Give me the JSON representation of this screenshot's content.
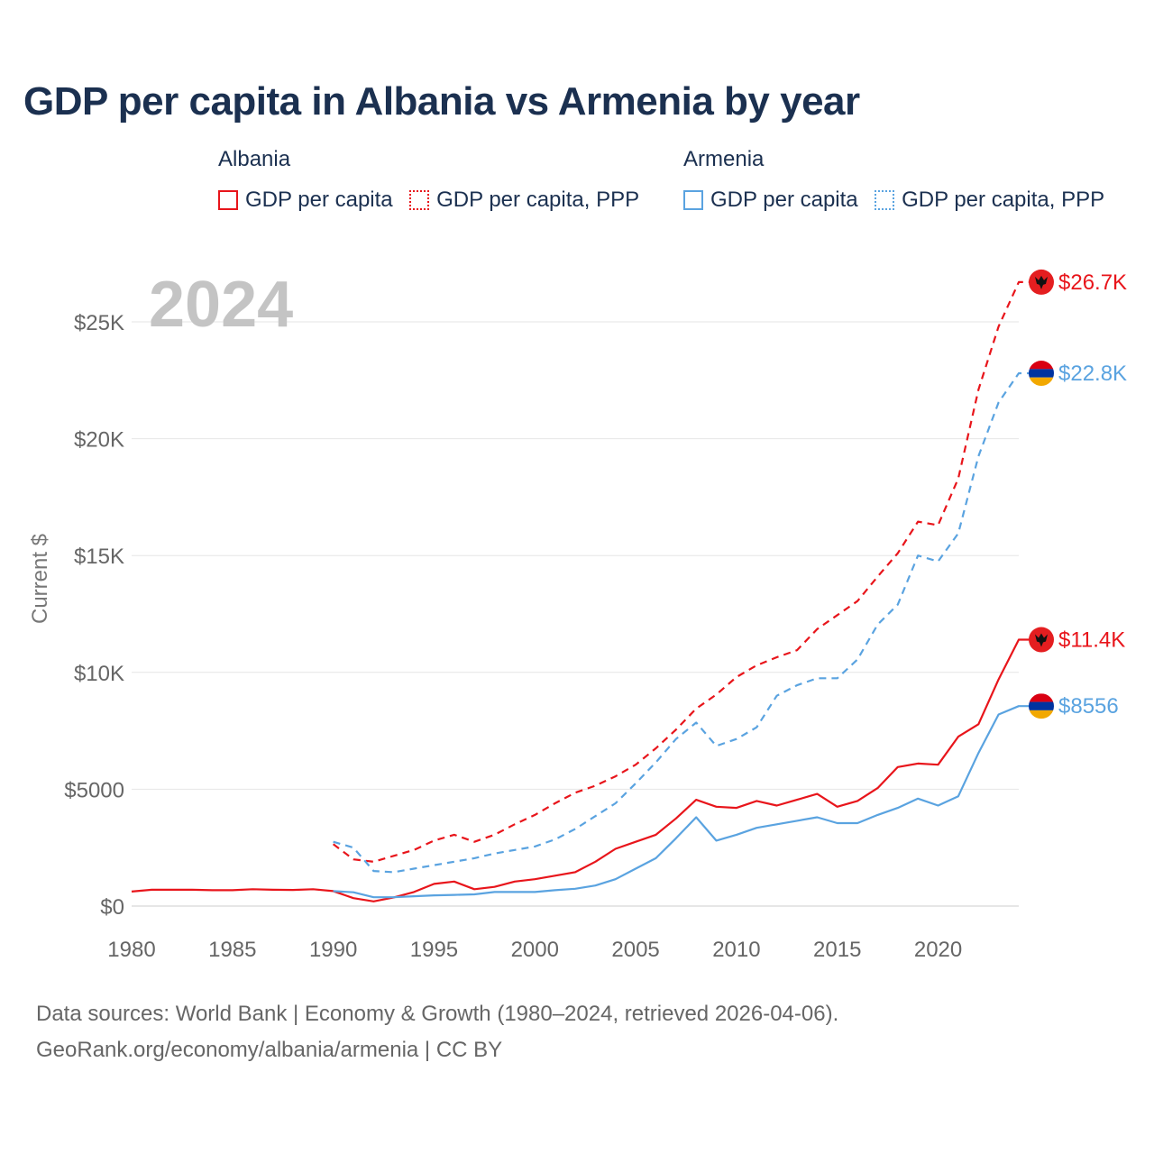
{
  "title": "GDP per capita in Albania vs Armenia by year",
  "legend": {
    "groups": [
      {
        "country": "Albania",
        "items": [
          {
            "label": "GDP per capita",
            "color": "#e8151b",
            "style": "solid"
          },
          {
            "label": "GDP per capita, PPP",
            "color": "#e8151b",
            "style": "dotted"
          }
        ]
      },
      {
        "country": "Armenia",
        "items": [
          {
            "label": "GDP per capita",
            "color": "#5aa3e0",
            "style": "solid"
          },
          {
            "label": "GDP per capita, PPP",
            "color": "#5aa3e0",
            "style": "dotted"
          }
        ]
      }
    ]
  },
  "chart_data": {
    "type": "line",
    "title": "GDP per capita in Albania vs Armenia by year",
    "year_label": "2024",
    "ylabel": "Current $",
    "xlabel": "",
    "xlim": [
      1980,
      2025
    ],
    "ylim": [
      0,
      28000
    ],
    "x_ticks": [
      1980,
      1985,
      1990,
      1995,
      2000,
      2005,
      2010,
      2015,
      2020
    ],
    "y_ticks": [
      {
        "value": 0,
        "label": "$0"
      },
      {
        "value": 5000,
        "label": "$5000"
      },
      {
        "value": 10000,
        "label": "$10K"
      },
      {
        "value": 15000,
        "label": "$15K"
      },
      {
        "value": 20000,
        "label": "$20K"
      },
      {
        "value": 25000,
        "label": "$25K"
      }
    ],
    "series": [
      {
        "name": "Albania GDP per capita",
        "country": "Albania",
        "color": "#e8151b",
        "dash": "solid",
        "end_label": "$11.4K",
        "flag": "albania",
        "x": [
          1980,
          1981,
          1982,
          1983,
          1984,
          1985,
          1986,
          1987,
          1988,
          1989,
          1990,
          1991,
          1992,
          1993,
          1994,
          1995,
          1996,
          1997,
          1998,
          1999,
          2000,
          2001,
          2002,
          2003,
          2004,
          2005,
          2006,
          2007,
          2008,
          2009,
          2010,
          2011,
          2012,
          2013,
          2014,
          2015,
          2016,
          2017,
          2018,
          2019,
          2020,
          2021,
          2022,
          2023,
          2024
        ],
        "values": [
          620,
          700,
          700,
          700,
          680,
          680,
          720,
          700,
          690,
          720,
          640,
          340,
          200,
          370,
          600,
          950,
          1050,
          720,
          820,
          1050,
          1150,
          1300,
          1450,
          1900,
          2450,
          2750,
          3050,
          3750,
          4550,
          4250,
          4200,
          4500,
          4300,
          4550,
          4800,
          4250,
          4500,
          5050,
          5950,
          6100,
          6050,
          7250,
          7780,
          9700,
          11400
        ]
      },
      {
        "name": "Albania GDP per capita, PPP",
        "country": "Albania",
        "color": "#e8151b",
        "dash": "dashed",
        "end_label": "$26.7K",
        "flag": "albania",
        "x": [
          1990,
          1991,
          1992,
          1993,
          1994,
          1995,
          1996,
          1997,
          1998,
          1999,
          2000,
          2001,
          2002,
          2003,
          2004,
          2005,
          2006,
          2007,
          2008,
          2009,
          2010,
          2011,
          2012,
          2013,
          2014,
          2015,
          2016,
          2017,
          2018,
          2019,
          2020,
          2021,
          2022,
          2023,
          2024
        ],
        "values": [
          2650,
          2000,
          1900,
          2150,
          2400,
          2800,
          3050,
          2750,
          3050,
          3500,
          3900,
          4400,
          4850,
          5150,
          5550,
          6050,
          6750,
          7550,
          8450,
          9050,
          9800,
          10300,
          10650,
          10950,
          11850,
          12450,
          13050,
          14100,
          15100,
          16450,
          16300,
          18300,
          22100,
          24800,
          26700
        ]
      },
      {
        "name": "Armenia GDP per capita",
        "country": "Armenia",
        "color": "#5aa3e0",
        "dash": "solid",
        "end_label": "$8556",
        "flag": "armenia",
        "x": [
          1990,
          1991,
          1992,
          1993,
          1994,
          1995,
          1996,
          1997,
          1998,
          1999,
          2000,
          2001,
          2002,
          2003,
          2004,
          2005,
          2006,
          2007,
          2008,
          2009,
          2010,
          2011,
          2012,
          2013,
          2014,
          2015,
          2016,
          2017,
          2018,
          2019,
          2020,
          2021,
          2022,
          2023,
          2024
        ],
        "values": [
          640,
          590,
          380,
          380,
          420,
          460,
          480,
          500,
          600,
          600,
          600,
          680,
          740,
          880,
          1150,
          1600,
          2050,
          2900,
          3800,
          2800,
          3050,
          3350,
          3500,
          3650,
          3800,
          3550,
          3550,
          3900,
          4200,
          4600,
          4300,
          4700,
          6550,
          8200,
          8556
        ]
      },
      {
        "name": "Armenia GDP per capita, PPP",
        "country": "Armenia",
        "color": "#5aa3e0",
        "dash": "dashed",
        "end_label": "$22.8K",
        "flag": "armenia",
        "x": [
          1990,
          1991,
          1992,
          1993,
          1994,
          1995,
          1996,
          1997,
          1998,
          1999,
          2000,
          2001,
          2002,
          2003,
          2004,
          2005,
          2006,
          2007,
          2008,
          2009,
          2010,
          2011,
          2012,
          2013,
          2014,
          2015,
          2016,
          2017,
          2018,
          2019,
          2020,
          2021,
          2022,
          2023,
          2024
        ],
        "values": [
          2750,
          2500,
          1500,
          1450,
          1600,
          1750,
          1900,
          2050,
          2250,
          2400,
          2550,
          2850,
          3300,
          3850,
          4400,
          5250,
          6150,
          7150,
          7850,
          6850,
          7150,
          7650,
          9000,
          9450,
          9750,
          9750,
          10550,
          12050,
          12900,
          15000,
          14750,
          15950,
          19250,
          21550,
          22800
        ]
      }
    ]
  },
  "source": {
    "line1": "Data sources: World Bank | Economy & Growth (1980–2024, retrieved 2026-04-06).",
    "line2": "GeoRank.org/economy/albania/armenia | CC BY"
  }
}
